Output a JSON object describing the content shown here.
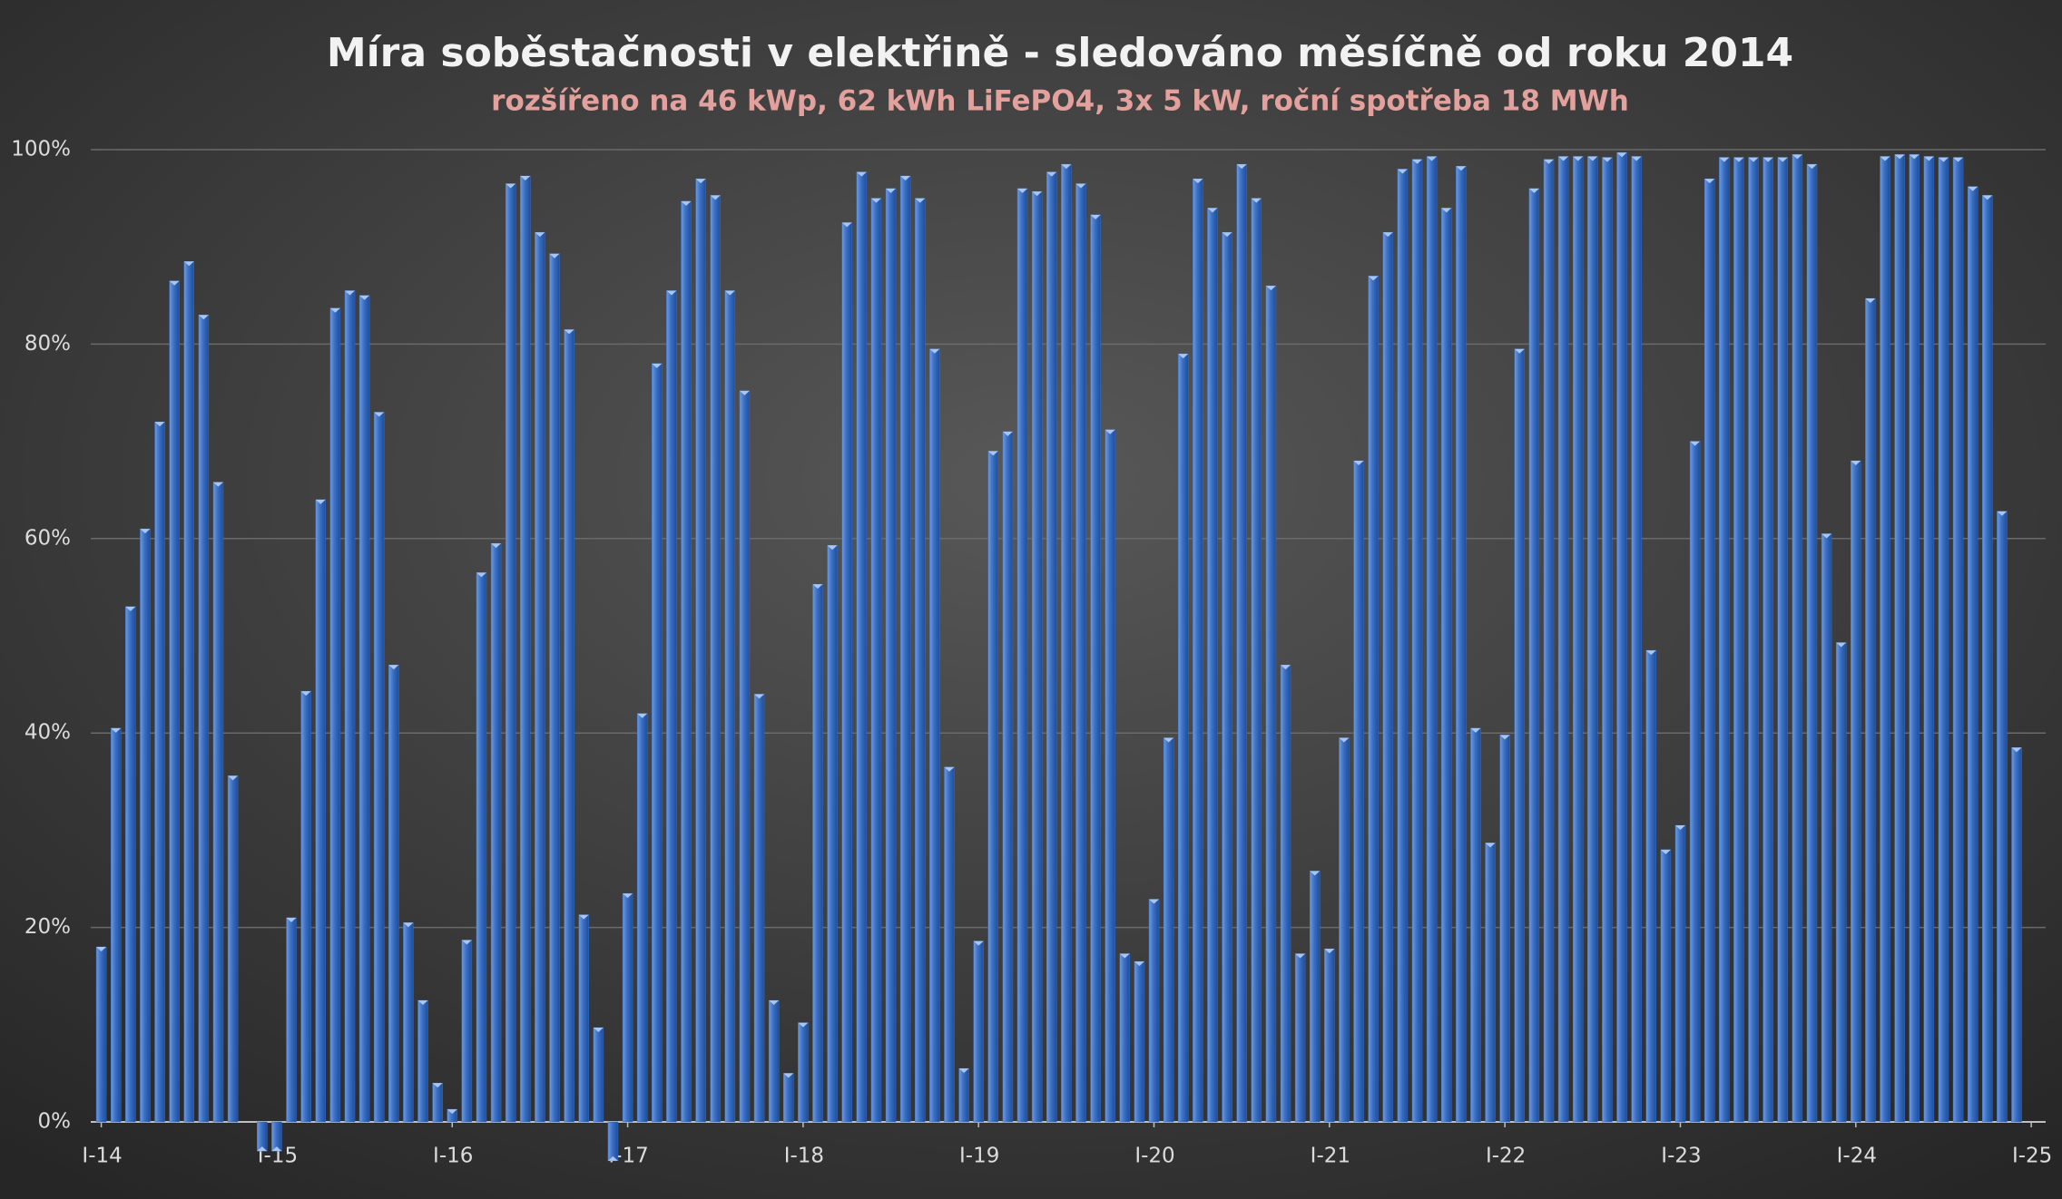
{
  "chart_data": {
    "type": "bar",
    "title": "Míra soběstačnosti v elektřině - sledováno měsíčně od roku 2014",
    "subtitle": "rozšířeno na 46 kWp, 62 kWh LiFePO4, 3x 5 kW, roční spotřeba 18 MWh",
    "color": "#3a6fc4",
    "values": [
      18,
      40.5,
      53,
      61,
      72,
      86.5,
      88.5,
      83,
      65.8,
      35.6,
      0,
      -3,
      -3,
      21,
      44.3,
      64,
      83.7,
      85.5,
      85,
      73,
      47,
      20.5,
      12.5,
      4,
      1.3,
      18.7,
      56.5,
      59.5,
      96.5,
      97.3,
      91.5,
      89.3,
      81.5,
      21.3,
      9.7,
      -4,
      23.5,
      42,
      78,
      85.5,
      94.7,
      97,
      95.3,
      85.5,
      75.2,
      44,
      12.5,
      5,
      10.2,
      55.3,
      59.3,
      92.5,
      97.7,
      95,
      96,
      97.3,
      95,
      79.5,
      36.5,
      5.5,
      18.6,
      69,
      71,
      96,
      95.7,
      97.7,
      98.5,
      96.5,
      93.3,
      71.2,
      17.3,
      16.5,
      22.9,
      39.5,
      79,
      97,
      94,
      91.5,
      98.5,
      95,
      86,
      47,
      17.3,
      25.8,
      17.8,
      39.5,
      68,
      87,
      91.5,
      98,
      99,
      99.3,
      94,
      98.3,
      40.5,
      28.7,
      39.8,
      79.5,
      96,
      99,
      99.3,
      99.3,
      99.3,
      99.2,
      99.7,
      99.3,
      48.5,
      28,
      30.5,
      70,
      97,
      99.2,
      99.2,
      99.2,
      99.2,
      99.2,
      99.5,
      98.5,
      60.5,
      49.3,
      68,
      84.7,
      99.3,
      99.5,
      99.5,
      99.3,
      99.2,
      99.2,
      96.2,
      95.3,
      62.8,
      38.5
    ],
    "xlim": [
      0,
      132
    ],
    "xticks": [
      {
        "value": 0,
        "label": "I-14"
      },
      {
        "value": 12,
        "label": "I-15"
      },
      {
        "value": 24,
        "label": "I-16"
      },
      {
        "value": 36,
        "label": "I-17"
      },
      {
        "value": 48,
        "label": "I-18"
      },
      {
        "value": 60,
        "label": "I-19"
      },
      {
        "value": 72,
        "label": "I-20"
      },
      {
        "value": 84,
        "label": "I-21"
      },
      {
        "value": 96,
        "label": "I-22"
      },
      {
        "value": 108,
        "label": "I-23"
      },
      {
        "value": 120,
        "label": "I-24"
      },
      {
        "value": 132,
        "label": "I-25"
      }
    ],
    "ylim": [
      0,
      100
    ],
    "yticks": [
      {
        "value": 0,
        "label": "0%"
      },
      {
        "value": 20,
        "label": "20%"
      },
      {
        "value": 40,
        "label": "40%"
      },
      {
        "value": 60,
        "label": "60%"
      },
      {
        "value": 80,
        "label": "80%"
      },
      {
        "value": 100,
        "label": "100%"
      }
    ],
    "grid": true
  }
}
